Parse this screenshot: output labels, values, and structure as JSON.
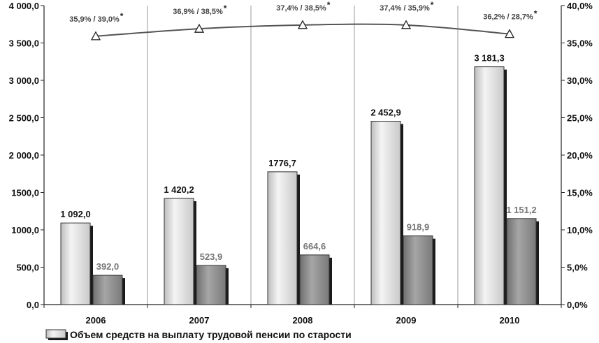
{
  "chart_data": {
    "type": "bar",
    "categories": [
      "2006",
      "2007",
      "2008",
      "2009",
      "2010"
    ],
    "series": [
      {
        "name": "Объем средств на выплату трудовой пенсии по старости",
        "values": [
          1092.0,
          1420.2,
          1776.7,
          2452.9,
          3181.3
        ],
        "labels": [
          "1 092,0",
          "1 420,2",
          "1776,7",
          "2 452,9",
          "3 181,3"
        ],
        "color": "#d8d8d8"
      },
      {
        "values": [
          392.0,
          523.9,
          664.6,
          918.9,
          1151.2
        ],
        "labels": [
          "392,0",
          "523,9",
          "664,6",
          "918,9",
          "1 151,2"
        ],
        "color": "#8e8e8e"
      },
      {
        "type": "line",
        "axis": "right",
        "values": [
          35.9,
          36.9,
          37.4,
          37.4,
          36.2
        ],
        "labels": [
          "35,9%  / 39,0%",
          "36,9%  / 38,5%",
          "37,4%  / 38,5%",
          "37,4%  / 35,9%",
          "36,2%  / 28,7%"
        ],
        "star": "*",
        "color": "#555555"
      }
    ],
    "ylim": [
      0,
      4000
    ],
    "y_ticks": [
      "0,0",
      "500,0",
      "1000,0",
      "1500,0",
      "2 000,0",
      "2 500,0",
      "3 000,0",
      "3 500,0",
      "4 000,0"
    ],
    "y2lim": [
      0,
      40
    ],
    "y2_ticks": [
      "0,0%",
      "5,0%",
      "10,0%",
      "15,0%",
      "20,0%",
      "25,0%",
      "30,0%",
      "35,0%",
      "40,0%"
    ],
    "grid": "vertical",
    "legend_position": "bottom-left"
  }
}
